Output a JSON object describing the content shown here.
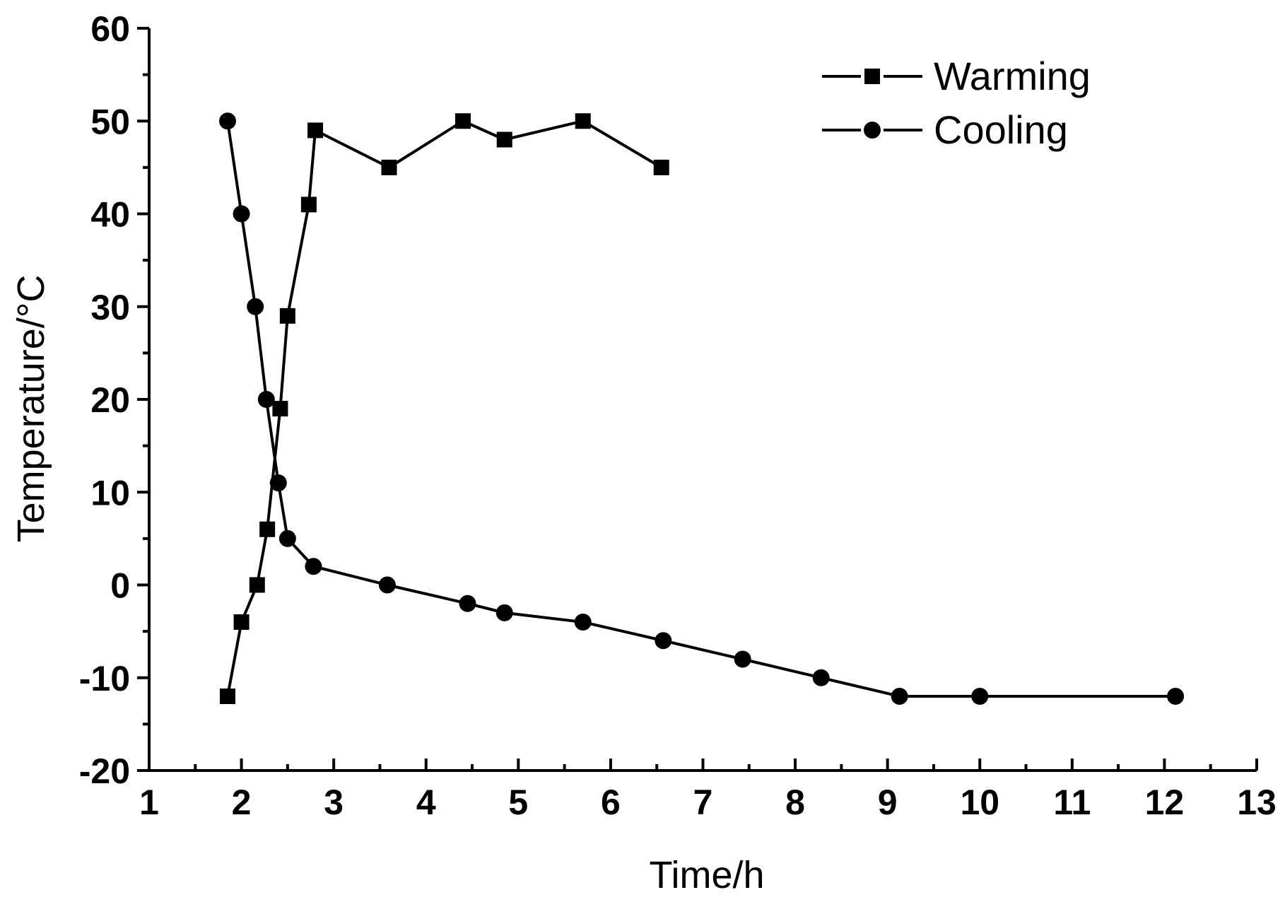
{
  "chart_data": {
    "type": "line",
    "title": "",
    "xlabel": "Time/h",
    "ylabel": "Temperature/°C",
    "xlim": [
      1,
      13
    ],
    "ylim": [
      -20,
      60
    ],
    "xticks": [
      1,
      2,
      3,
      4,
      5,
      6,
      7,
      8,
      9,
      10,
      11,
      12,
      13
    ],
    "yticks": [
      -20,
      -10,
      0,
      10,
      20,
      30,
      40,
      50,
      60
    ],
    "grid": false,
    "legend_position": "top-right",
    "series": [
      {
        "name": "Warming",
        "marker": "square",
        "x": [
          1.85,
          2.0,
          2.17,
          2.28,
          2.42,
          2.5,
          2.73,
          2.8,
          3.6,
          4.4,
          4.85,
          5.7,
          6.55
        ],
        "y": [
          -12,
          -4,
          0,
          6,
          19,
          29,
          41,
          49,
          45,
          50,
          48,
          50,
          45
        ]
      },
      {
        "name": "Cooling",
        "marker": "circle",
        "x": [
          1.85,
          2.0,
          2.15,
          2.27,
          2.4,
          2.5,
          2.78,
          3.58,
          4.45,
          4.85,
          5.7,
          6.57,
          7.43,
          8.28,
          9.13,
          10.0,
          12.12
        ],
        "y": [
          50,
          40,
          30,
          20,
          11,
          5,
          2,
          0,
          -2,
          -3,
          -4,
          -6,
          -8,
          -10,
          -12,
          -12,
          -12
        ]
      }
    ]
  }
}
